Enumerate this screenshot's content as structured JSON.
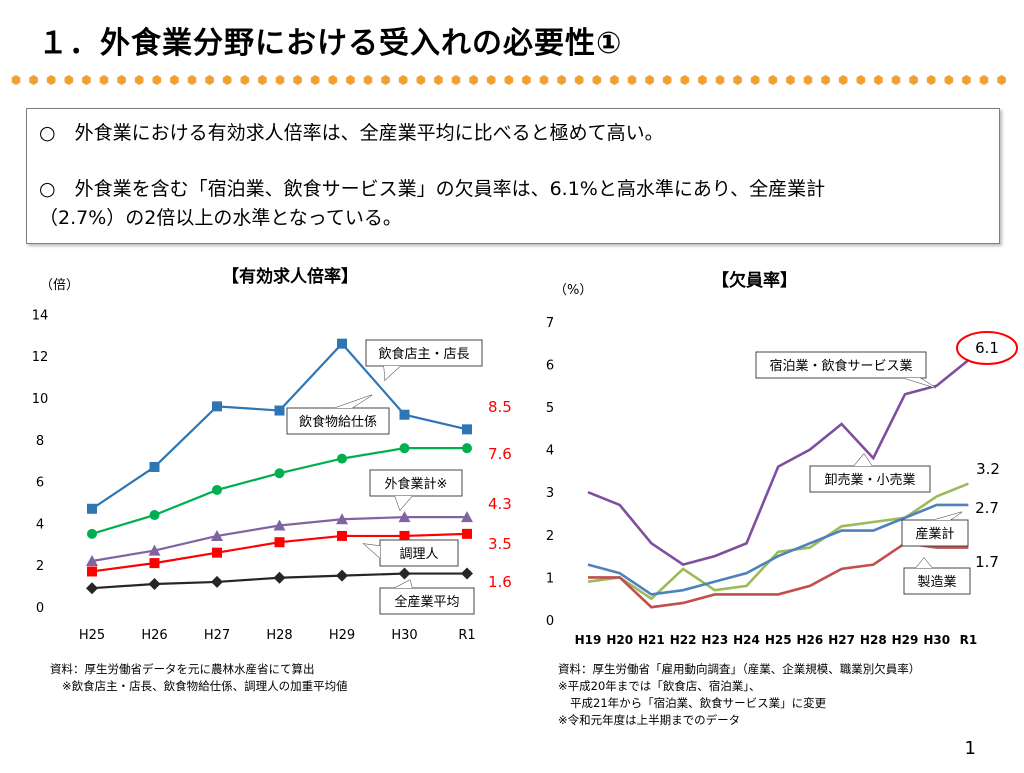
{
  "title": "１．外食業分野における受入れの必要性①",
  "summary": {
    "line1": "○　外食業における有効求人倍率は、全産業平均に比べると極めて高い。",
    "line2": "○　外食業を含む「宿泊業、飲食サービス業」の欠員率は、6.1%と高水準にあり、全産業計",
    "line3": "（2.7%）の2倍以上の水準となっている。"
  },
  "chart_data": [
    {
      "type": "line",
      "title": "【有効求人倍率】",
      "ylabel": "（倍）",
      "ylim": [
        0,
        14
      ],
      "yticks": [
        "0",
        "2",
        "4",
        "6",
        "8",
        "10",
        "12",
        "14"
      ],
      "categories": [
        "H25",
        "H26",
        "H27",
        "H28",
        "H29",
        "H30",
        "R1"
      ],
      "series": [
        {
          "name": "飲食店主・店長",
          "color": "#2e75b6",
          "marker": "square",
          "values": [
            4.7,
            6.7,
            9.6,
            9.4,
            12.6,
            9.2,
            8.5
          ]
        },
        {
          "name": "飲食物給仕係",
          "color": "#00b050",
          "marker": "circle",
          "values": [
            3.5,
            4.4,
            5.6,
            6.4,
            7.1,
            7.6,
            7.6
          ]
        },
        {
          "name": "外食業計※",
          "color": "#8064a2",
          "marker": "triangle",
          "values": [
            2.2,
            2.7,
            3.4,
            3.9,
            4.2,
            4.3,
            4.3
          ]
        },
        {
          "name": "調理人",
          "color": "#ff0000",
          "marker": "square",
          "values": [
            1.7,
            2.1,
            2.6,
            3.1,
            3.4,
            3.4,
            3.5
          ]
        },
        {
          "name": "全産業平均",
          "color": "#262626",
          "marker": "diamond",
          "values": [
            0.9,
            1.1,
            1.2,
            1.4,
            1.5,
            1.6,
            1.6
          ]
        }
      ],
      "end_labels": [
        "8.5",
        "7.6",
        "4.3",
        "3.5",
        "1.6"
      ],
      "label_color": "#ff0000",
      "notes": [
        "資料：厚生労働省データを元に農林水産省にて算出",
        "※飲食店主・店長、飲食物給仕係、調理人の加重平均値"
      ]
    },
    {
      "type": "line",
      "title": "【欠員率】",
      "ylabel": "（%）",
      "ylim": [
        0,
        7
      ],
      "yticks": [
        "0",
        "1",
        "2",
        "3",
        "4",
        "5",
        "6",
        "7"
      ],
      "categories": [
        "H19",
        "H20",
        "H21",
        "H22",
        "H23",
        "H24",
        "H25",
        "H26",
        "H27",
        "H28",
        "H29",
        "H30",
        "R1"
      ],
      "series": [
        {
          "name": "宿泊業・飲食サービス業",
          "color": "#7f4e9e",
          "values": [
            3.0,
            2.7,
            1.8,
            1.3,
            1.5,
            1.8,
            3.6,
            4.0,
            4.6,
            3.8,
            5.3,
            5.5,
            6.1
          ]
        },
        {
          "name": "卸売業・小売業",
          "color": "#9bbb59",
          "values": [
            0.9,
            1.0,
            0.5,
            1.2,
            0.7,
            0.8,
            1.6,
            1.7,
            2.2,
            2.3,
            2.4,
            2.9,
            3.2
          ]
        },
        {
          "name": "産業計",
          "color": "#4f81bd",
          "values": [
            1.3,
            1.1,
            0.6,
            0.7,
            0.9,
            1.1,
            1.5,
            1.8,
            2.1,
            2.1,
            2.4,
            2.7,
            2.7
          ]
        },
        {
          "name": "製造業",
          "color": "#c0504d",
          "values": [
            1.0,
            1.0,
            0.3,
            0.4,
            0.6,
            0.6,
            0.6,
            0.8,
            1.2,
            1.3,
            1.8,
            1.7,
            1.7
          ]
        }
      ],
      "end_labels": [
        "6.1",
        "3.2",
        "2.7",
        "1.7"
      ],
      "notes": [
        "資料：厚生労働省「雇用動向調査」（産業、企業規模、職業別欠員率）",
        "※平成20年までは「飲食店、宿泊業」、",
        "平成21年から「宿泊業、飲食サービス業」に変更",
        "※令和元年度は上半期までのデータ"
      ]
    }
  ],
  "page_number": "1"
}
